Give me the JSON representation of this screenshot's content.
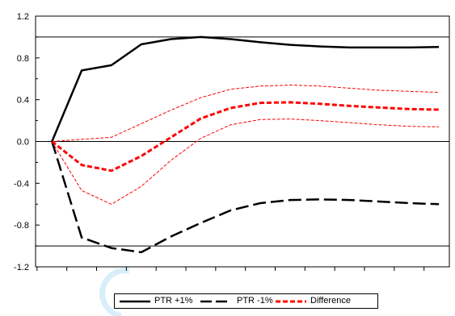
{
  "chart_data": {
    "type": "line",
    "x": [
      1,
      2,
      3,
      4,
      5,
      6,
      7,
      8,
      9,
      10,
      11,
      12,
      13,
      14
    ],
    "xlim": [
      0.45,
      14.35
    ],
    "ylim": [
      -1.2,
      1.2
    ],
    "yticks": [
      {
        "value": 1.2,
        "label": "1.2"
      },
      {
        "value": 0.8,
        "label": "0.8"
      },
      {
        "value": 0.4,
        "label": "0.4"
      },
      {
        "value": 0.0,
        "label": "0.0"
      },
      {
        "value": -0.4,
        "label": "-0.4"
      },
      {
        "value": -0.8,
        "label": "-0.8"
      },
      {
        "value": -1.2,
        "label": "-1.2"
      }
    ],
    "reference_lines": [
      1.0,
      0.0,
      -1.0
    ],
    "grid": false,
    "legend_position": "bottom",
    "series": [
      {
        "name": "PTR +1%",
        "style": "solid",
        "color": "#000000",
        "values": [
          0,
          0.68,
          0.73,
          0.93,
          0.98,
          1.0,
          0.98,
          0.95,
          0.925,
          0.91,
          0.9,
          0.9,
          0.9,
          0.905
        ]
      },
      {
        "name": "PTR -1%",
        "style": "long-dash",
        "color": "#000000",
        "values": [
          0,
          -0.92,
          -1.02,
          -1.06,
          -0.91,
          -0.78,
          -0.66,
          -0.59,
          -0.56,
          -0.555,
          -0.56,
          -0.575,
          -0.59,
          -0.6
        ]
      },
      {
        "name": "Difference",
        "style": "dash",
        "color": "#ff0000",
        "values": [
          0,
          -0.225,
          -0.28,
          -0.14,
          0.04,
          0.22,
          0.32,
          0.37,
          0.375,
          0.36,
          0.34,
          0.325,
          0.31,
          0.305
        ]
      },
      {
        "style": "thin-dash",
        "color": "#ff0000",
        "values": [
          0,
          0.02,
          0.04,
          0.17,
          0.3,
          0.42,
          0.5,
          0.53,
          0.54,
          0.53,
          0.51,
          0.49,
          0.48,
          0.47
        ]
      },
      {
        "style": "thin-dash",
        "color": "#ff0000",
        "values": [
          0,
          -0.47,
          -0.6,
          -0.43,
          -0.18,
          0.03,
          0.16,
          0.21,
          0.215,
          0.2,
          0.18,
          0.16,
          0.145,
          0.14
        ]
      }
    ]
  }
}
